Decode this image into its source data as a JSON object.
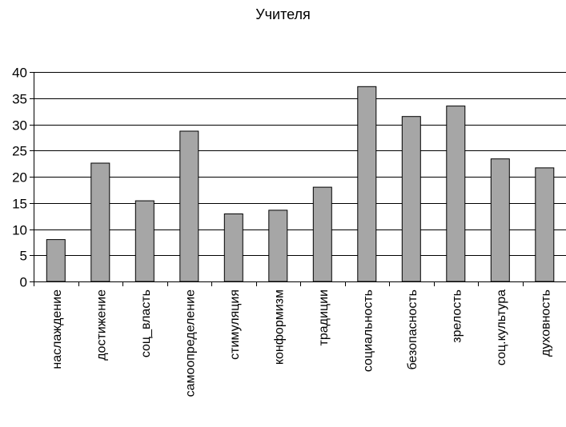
{
  "chart_data": {
    "type": "bar",
    "title": "Учителя",
    "categories": [
      "наслаждение",
      "достижение",
      "соц_власть",
      "самоопределение",
      "стимуляция",
      "конформизм",
      "традиции",
      "социальность",
      "безопасность",
      "зрелость",
      "соц.культура",
      "духовность"
    ],
    "values": [
      8,
      22.6,
      15.4,
      28.7,
      12.9,
      13.6,
      18,
      37.2,
      31.5,
      33.5,
      23.4,
      21.7
    ],
    "ylim": [
      0,
      40
    ],
    "yticks": [
      0,
      5,
      10,
      15,
      20,
      25,
      30,
      35,
      40
    ],
    "grid": true,
    "xlabel": "",
    "ylabel": "",
    "colors": {
      "bar": "#a6a6a6",
      "bar_stroke": "#000000",
      "grid": "#000000",
      "axis": "#000000"
    }
  }
}
